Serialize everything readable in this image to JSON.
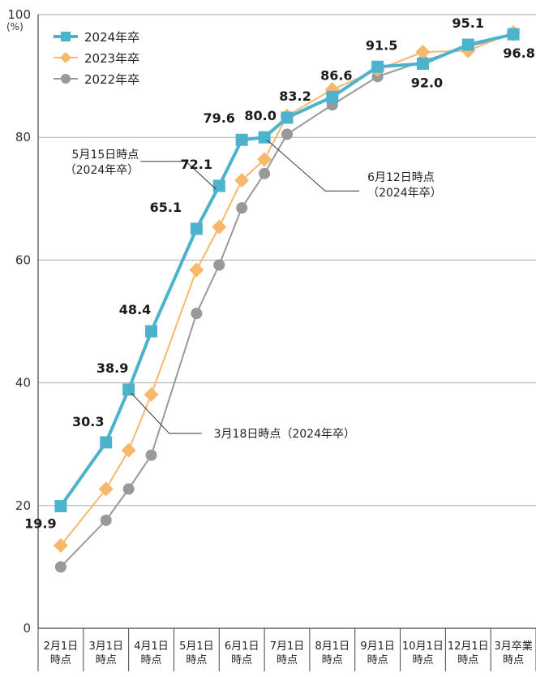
{
  "chart_data": {
    "type": "line",
    "yunit": "(%)",
    "ylim": [
      0,
      100
    ],
    "yticks": [
      0,
      20,
      40,
      60,
      80,
      100
    ],
    "categories": [
      [
        "2月1日",
        "時点"
      ],
      [
        "3月1日",
        "時点"
      ],
      [
        "4月1日",
        "時点"
      ],
      [
        "5月1日",
        "時点"
      ],
      [
        "6月1日",
        "時点"
      ],
      [
        "7月1日",
        "時点"
      ],
      [
        "8月1日",
        "時点"
      ],
      [
        "9月1日",
        "時点"
      ],
      [
        "10月1日",
        "時点"
      ],
      [
        "12月1日",
        "時点"
      ],
      [
        "3月卒業",
        "時点"
      ]
    ],
    "series": [
      {
        "name": "2024年卒",
        "color": "#4db3cc",
        "marker": "square",
        "points": [
          {
            "x": 0,
            "y": 19.9,
            "label": "19.9"
          },
          {
            "x": 1,
            "y": 30.3,
            "label": "30.3"
          },
          {
            "x": 1.5,
            "y": 38.9,
            "label": "38.9"
          },
          {
            "x": 2,
            "y": 48.4,
            "label": "48.4"
          },
          {
            "x": 3,
            "y": 65.1,
            "label": "65.1"
          },
          {
            "x": 3.5,
            "y": 72.1,
            "label": "72.1"
          },
          {
            "x": 4,
            "y": 79.6,
            "label": "79.6"
          },
          {
            "x": 4.5,
            "y": 80.0,
            "label": "80.0"
          },
          {
            "x": 5,
            "y": 83.2,
            "label": "83.2"
          },
          {
            "x": 6,
            "y": 86.6,
            "label": "86.6"
          },
          {
            "x": 7,
            "y": 91.5,
            "label": "91.5"
          },
          {
            "x": 8,
            "y": 92.0,
            "label": "92.0"
          },
          {
            "x": 9,
            "y": 95.1,
            "label": "95.1"
          },
          {
            "x": 10,
            "y": 96.8,
            "label": "96.8"
          }
        ]
      },
      {
        "name": "2023年卒",
        "color": "#f7b86b",
        "marker": "diamond",
        "points": [
          {
            "x": 0,
            "y": 13.5
          },
          {
            "x": 1,
            "y": 22.7
          },
          {
            "x": 1.5,
            "y": 29.0
          },
          {
            "x": 2,
            "y": 38.1
          },
          {
            "x": 3,
            "y": 58.4
          },
          {
            "x": 3.5,
            "y": 65.4
          },
          {
            "x": 4,
            "y": 73.0
          },
          {
            "x": 4.5,
            "y": 76.4
          },
          {
            "x": 5,
            "y": 83.5
          },
          {
            "x": 6,
            "y": 87.8
          },
          {
            "x": 7,
            "y": 91.0
          },
          {
            "x": 8,
            "y": 93.9
          },
          {
            "x": 9,
            "y": 94.1
          },
          {
            "x": 10,
            "y": 97.1
          }
        ]
      },
      {
        "name": "2022年卒",
        "color": "#999999",
        "marker": "circle",
        "points": [
          {
            "x": 0,
            "y": 10.0
          },
          {
            "x": 1,
            "y": 17.6
          },
          {
            "x": 1.5,
            "y": 22.7
          },
          {
            "x": 2,
            "y": 28.2
          },
          {
            "x": 3,
            "y": 51.3
          },
          {
            "x": 3.5,
            "y": 59.2
          },
          {
            "x": 4,
            "y": 68.5
          },
          {
            "x": 4.5,
            "y": 74.1
          },
          {
            "x": 5,
            "y": 80.5
          },
          {
            "x": 6,
            "y": 85.3
          },
          {
            "x": 7,
            "y": 89.9
          },
          {
            "x": 8,
            "y": 92.4
          },
          {
            "x": 9,
            "y": 94.8
          },
          {
            "x": 10,
            "y": 96.7
          }
        ]
      }
    ],
    "annotations": [
      {
        "lines": [
          "5月15日時点",
          "（2024年卒）"
        ],
        "series": 0,
        "point": 5
      },
      {
        "lines": [
          "6月12日時点",
          "（2024年卒）"
        ],
        "series": 0,
        "point": 7
      },
      {
        "lines": [
          "3月18日時点（2024年卒）"
        ],
        "series": 0,
        "point": 2
      }
    ],
    "grid": true,
    "legend": "top-left"
  }
}
